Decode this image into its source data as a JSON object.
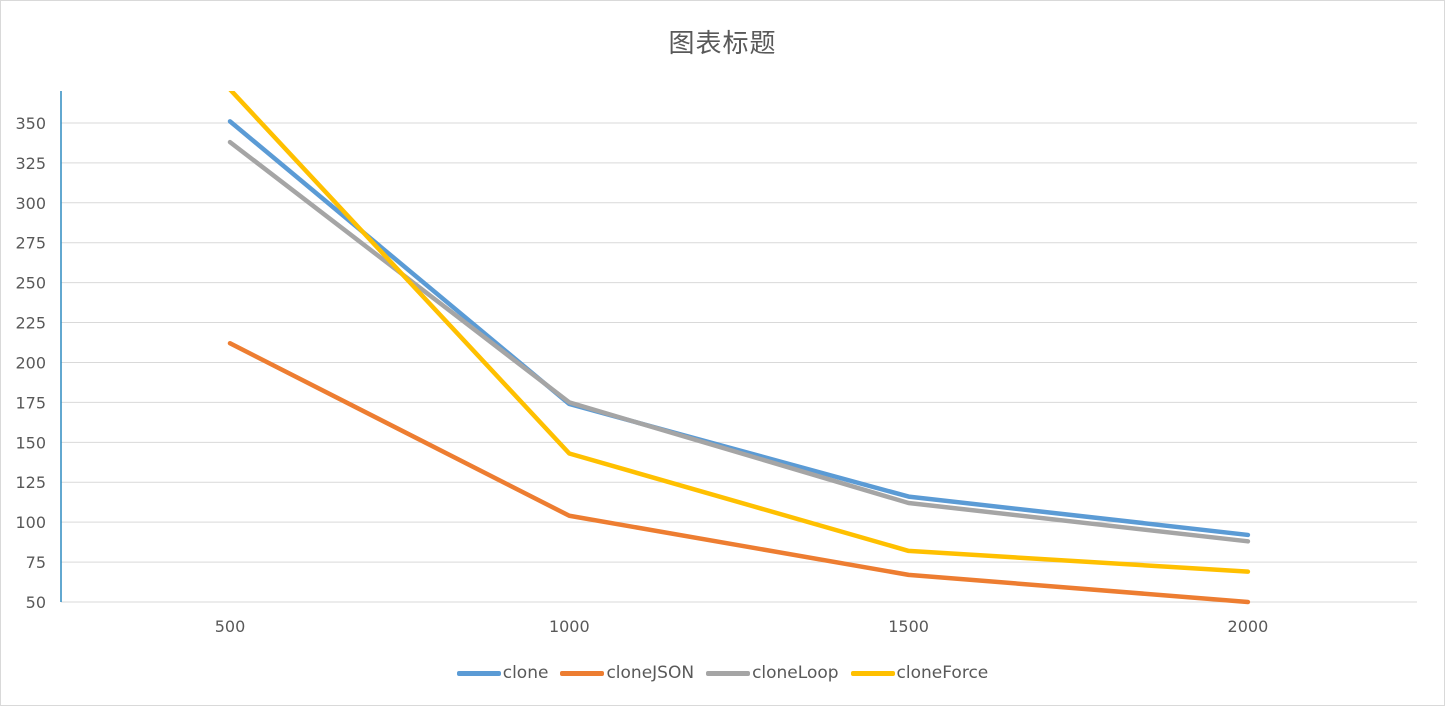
{
  "chart_data": {
    "type": "line",
    "title": "图表标题",
    "xlabel": "",
    "ylabel": "",
    "x": [
      500,
      1000,
      1500,
      2000
    ],
    "ylim": [
      50,
      370
    ],
    "yticks": [
      50,
      75,
      100,
      125,
      150,
      175,
      200,
      225,
      250,
      275,
      300,
      325,
      350
    ],
    "grid": true,
    "legend_position": "bottom",
    "series": [
      {
        "name": "clone",
        "color": "#5b9bd5",
        "values": [
          351,
          174,
          116,
          92
        ]
      },
      {
        "name": "cloneJSON",
        "color": "#ed7d31",
        "values": [
          212,
          104,
          67,
          50
        ]
      },
      {
        "name": "cloneLoop",
        "color": "#a5a5a5",
        "values": [
          338,
          175,
          112,
          88
        ]
      },
      {
        "name": "cloneForce",
        "color": "#ffc000",
        "values": [
          371,
          143,
          82,
          69
        ]
      }
    ]
  }
}
